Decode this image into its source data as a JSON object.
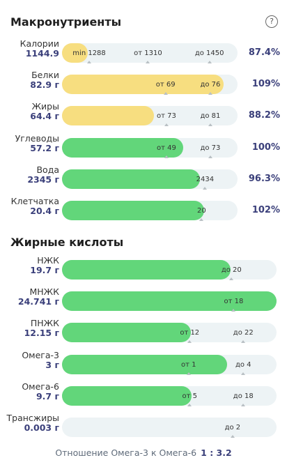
{
  "macros": {
    "title": "Макронутриенты",
    "help_icon": "question-circle-icon",
    "rows": [
      {
        "name": "Калории",
        "value": "1144.9",
        "percent": "87.4%",
        "fill": 0.145,
        "color": "#f7de80",
        "marks": [
          {
            "text": "min 1288",
            "pos": 0.155
          },
          {
            "text": "от 1310",
            "pos": 0.49
          },
          {
            "text": "до 1450",
            "pos": 0.84
          }
        ]
      },
      {
        "name": "Белки",
        "value": "82.9 г",
        "percent": "109%",
        "fill": 0.92,
        "color": "#f7de80",
        "marks": [
          {
            "text": "от 69",
            "pos": 0.59
          },
          {
            "text": "до 76",
            "pos": 0.845
          }
        ]
      },
      {
        "name": "Жиры",
        "value": "64.4 г",
        "percent": "88.2%",
        "fill": 0.525,
        "color": "#f7de80",
        "marks": [
          {
            "text": "от 73",
            "pos": 0.595
          },
          {
            "text": "до 81",
            "pos": 0.845
          }
        ]
      },
      {
        "name": "Углеводы",
        "value": "57.2 г",
        "percent": "100%",
        "fill": 0.69,
        "color": "#62d67a",
        "marks": [
          {
            "text": "от 49",
            "pos": 0.595
          },
          {
            "text": "до 73",
            "pos": 0.845
          }
        ]
      },
      {
        "name": "Вода",
        "value": "2345 г",
        "percent": "96.3%",
        "fill": 0.785,
        "color": "#62d67a",
        "marks": [
          {
            "text": "2434",
            "pos": 0.815
          }
        ]
      },
      {
        "name": "Клетчатка",
        "value": "20.4 г",
        "percent": "102%",
        "fill": 0.81,
        "color": "#62d67a",
        "marks": [
          {
            "text": "20",
            "pos": 0.795
          }
        ]
      }
    ]
  },
  "fatty_acids": {
    "title": "Жирные кислоты",
    "rows": [
      {
        "name": "НЖК",
        "value": "19.7 г",
        "fill": 0.785,
        "color": "#62d67a",
        "marks": [
          {
            "text": "до 20",
            "pos": 0.79
          }
        ]
      },
      {
        "name": "МНЖК",
        "value": "24.741 г",
        "fill": 1.0,
        "color": "#62d67a",
        "marks": [
          {
            "text": "от 18",
            "pos": 0.8
          }
        ]
      },
      {
        "name": "ПНЖК",
        "value": "12.15 г",
        "fill": 0.6,
        "color": "#62d67a",
        "marks": [
          {
            "text": "от 12",
            "pos": 0.595
          },
          {
            "text": "до 22",
            "pos": 0.845
          }
        ]
      },
      {
        "name": "Омега-3",
        "value": "3 г",
        "fill": 0.77,
        "color": "#62d67a",
        "marks": [
          {
            "text": "от 1",
            "pos": 0.59
          },
          {
            "text": "до 4",
            "pos": 0.845
          }
        ]
      },
      {
        "name": "Омега-6",
        "value": "9.7 г",
        "fill": 0.605,
        "color": "#62d67a",
        "marks": [
          {
            "text": "от 5",
            "pos": 0.595
          },
          {
            "text": "до 18",
            "pos": 0.845
          }
        ]
      },
      {
        "name": "Трансжиры",
        "value": "0.003 г",
        "fill": 0.0,
        "color": "#62d67a",
        "marks": [
          {
            "text": "до 2",
            "pos": 0.795
          }
        ]
      }
    ]
  },
  "ratio": {
    "label": "Отношение Омега-3 к Омега-6",
    "value": "1 : 3.2"
  }
}
